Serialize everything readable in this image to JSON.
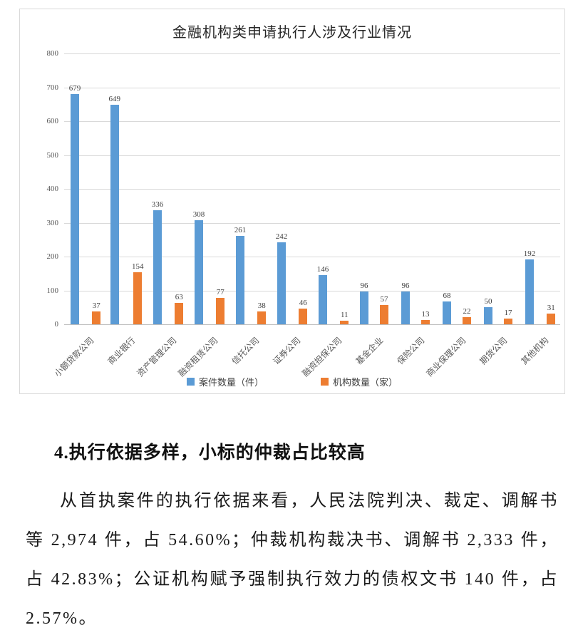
{
  "chart_data": {
    "type": "bar",
    "title": "金融机构类申请执行人涉及行业情况",
    "categories": [
      "小额贷款公司",
      "商业银行",
      "资产管理公司",
      "融资租赁公司",
      "信托公司",
      "证券公司",
      "融资担保公司",
      "基金企业",
      "保险公司",
      "商业保理公司",
      "期货公司",
      "其他机构"
    ],
    "series": [
      {
        "name": "案件数量（件）",
        "color": "#5B9BD5",
        "values": [
          679,
          649,
          336,
          308,
          261,
          242,
          146,
          96,
          96,
          68,
          50,
          192
        ]
      },
      {
        "name": "机构数量（家）",
        "color": "#ED7D31",
        "values": [
          37,
          154,
          63,
          77,
          38,
          46,
          11,
          57,
          13,
          22,
          17,
          31
        ]
      }
    ],
    "xlabel": "",
    "ylabel": "",
    "ylim": [
      0,
      800
    ],
    "ytick_step": 100,
    "grid": true,
    "legend_position": "bottom"
  },
  "document": {
    "heading": "4.执行依据多样，小标的仲裁占比较高",
    "paragraph": "从首执案件的执行依据来看，人民法院判决、裁定、调解书等 2,974 件，占 54.60%；仲裁机构裁决书、调解书 2,333 件，占 42.83%；公证机构赋予强制执行效力的债权文书 140 件，占 2.57%。"
  }
}
